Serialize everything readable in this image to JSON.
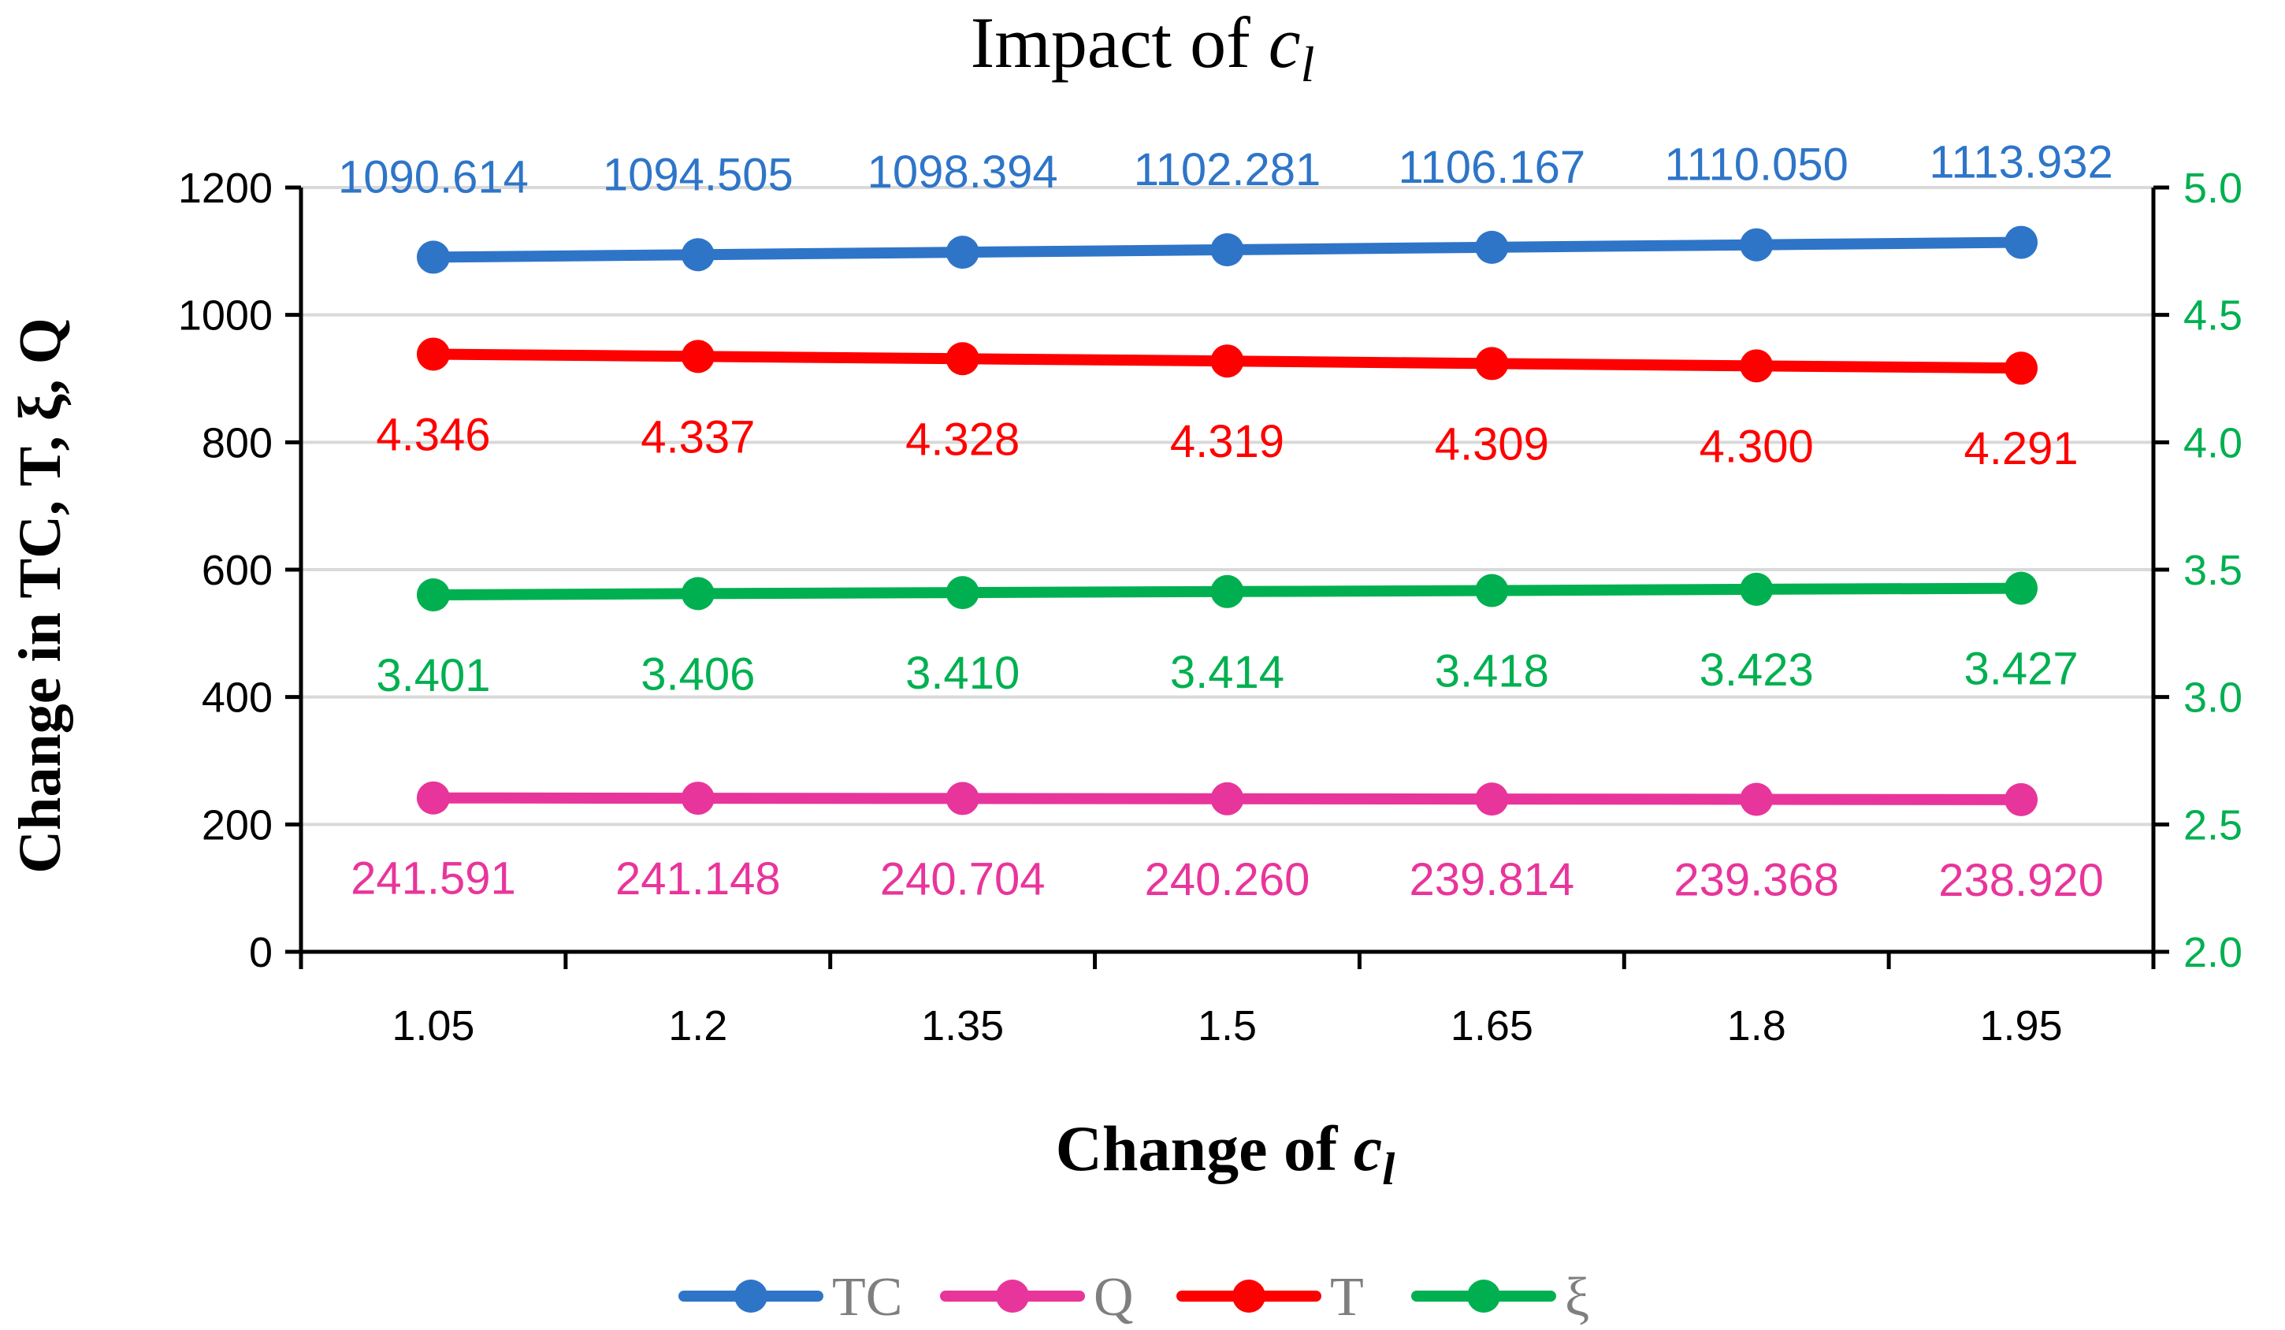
{
  "chart_data": {
    "type": "line",
    "title_prefix": "Impact of ",
    "title_var": "c",
    "title_sub": "l",
    "xlabel_prefix": "Change of ",
    "xlabel_var": "c",
    "xlabel_sub": "l",
    "ylabel": "Change in TC, T, ξ, Q",
    "categories": [
      "1.05",
      "1.2",
      "1.35",
      "1.5",
      "1.65",
      "1.8",
      "1.95"
    ],
    "y_left": {
      "min": 0,
      "max": 1200,
      "ticks": [
        "0",
        "200",
        "400",
        "600",
        "800",
        "1000",
        "1200"
      ]
    },
    "y_right": {
      "min": 2.0,
      "max": 5.0,
      "ticks": [
        "2.0",
        "2.5",
        "3.0",
        "3.5",
        "4.0",
        "4.5",
        "5.0"
      ],
      "color": "#00b050"
    },
    "gridlines": true,
    "legend_position": "bottom",
    "series": [
      {
        "name": "TC",
        "color": "#2e75c8",
        "axis": "left",
        "values": [
          1090.614,
          1094.505,
          1098.394,
          1102.281,
          1106.167,
          1110.05,
          1113.932
        ],
        "labels": [
          "1090.614",
          "1094.505",
          "1098.394",
          "1102.281",
          "1106.167",
          "1110.050",
          "1113.932"
        ],
        "label_pos": "above"
      },
      {
        "name": "Q",
        "color": "#e8359b",
        "axis": "left",
        "values": [
          241.591,
          241.148,
          240.704,
          240.26,
          239.814,
          239.368,
          238.92
        ],
        "labels": [
          "241.591",
          "241.148",
          "240.704",
          "240.260",
          "239.814",
          "239.368",
          "238.920"
        ],
        "label_pos": "below"
      },
      {
        "name": "T",
        "color": "#ff0000",
        "axis": "right",
        "values": [
          4.346,
          4.337,
          4.328,
          4.319,
          4.309,
          4.3,
          4.291
        ],
        "labels": [
          "4.346",
          "4.337",
          "4.328",
          "4.319",
          "4.309",
          "4.300",
          "4.291"
        ],
        "label_pos": "below"
      },
      {
        "name": "ξ",
        "color": "#00b050",
        "axis": "right",
        "values": [
          3.401,
          3.406,
          3.41,
          3.414,
          3.418,
          3.423,
          3.427
        ],
        "labels": [
          "3.401",
          "3.406",
          "3.410",
          "3.414",
          "3.418",
          "3.423",
          "3.427"
        ],
        "label_pos": "below"
      }
    ]
  }
}
